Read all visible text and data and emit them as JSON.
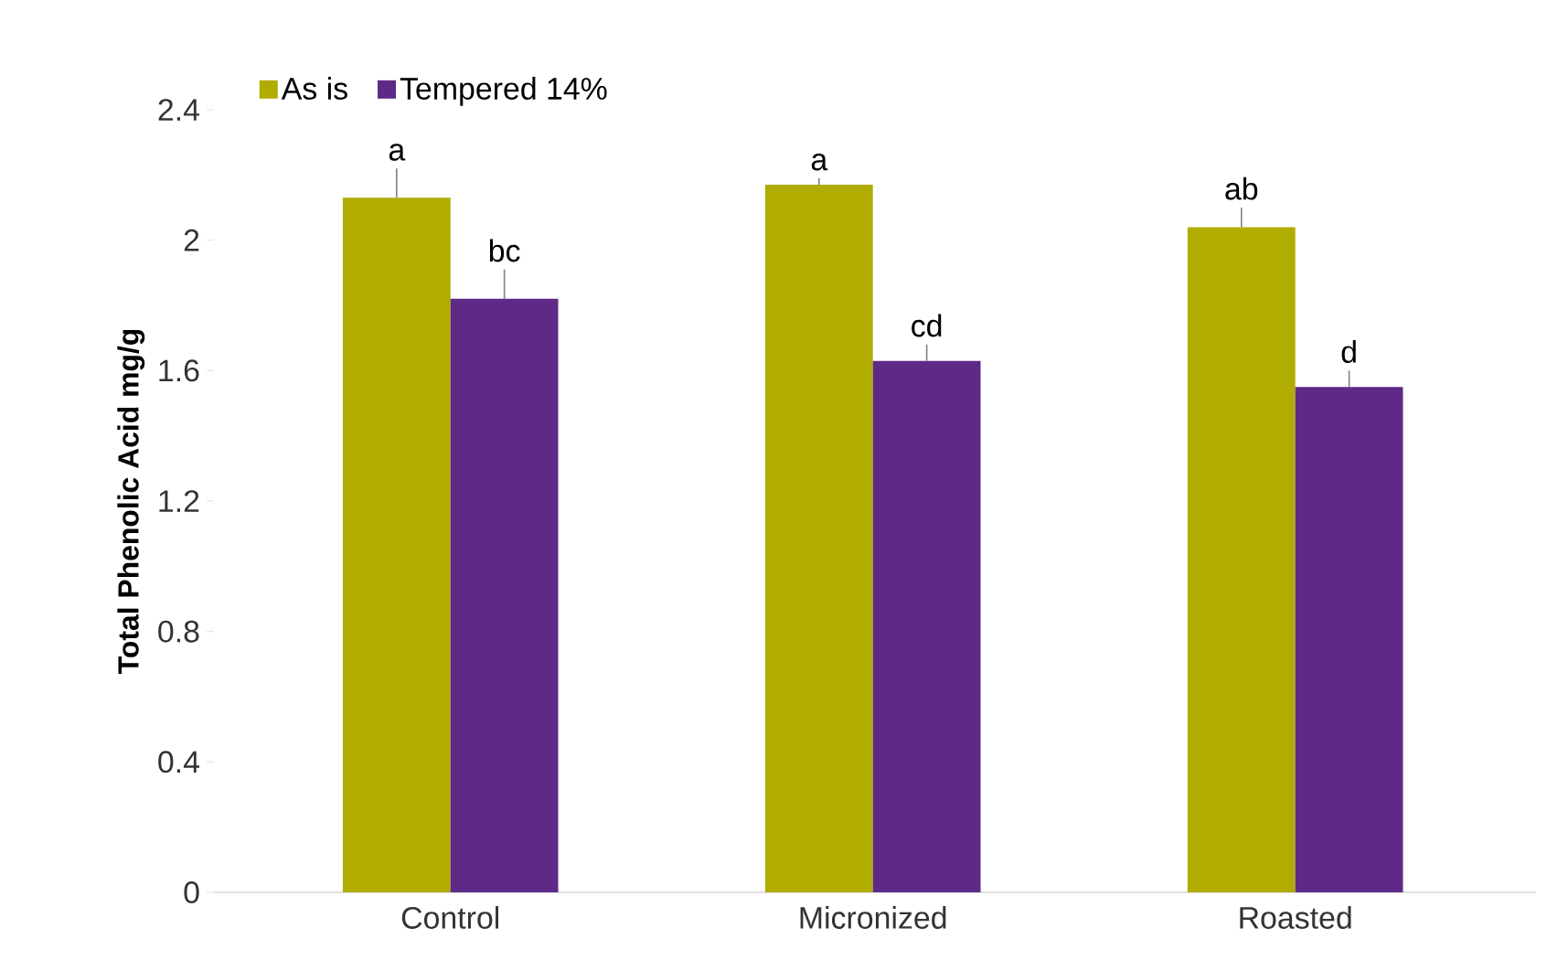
{
  "chart_data": {
    "type": "bar",
    "ylabel": "Total Phenolic Acid mg/g",
    "categories": [
      "Control",
      "Micronized",
      "Roasted"
    ],
    "series": [
      {
        "name": "As is",
        "color": "#b0ac00",
        "values": [
          2.13,
          2.17,
          2.04
        ],
        "errors": [
          [
            2.13,
            2.22
          ],
          [
            2.17,
            2.19
          ],
          [
            2.04,
            2.1
          ]
        ],
        "value_labels": [
          "a",
          "a",
          "ab"
        ]
      },
      {
        "name": "Tempered 14%",
        "color": "#5f2a87",
        "values": [
          1.82,
          1.63,
          1.55
        ],
        "errors": [
          [
            1.82,
            1.91
          ],
          [
            1.63,
            1.68
          ],
          [
            1.55,
            1.6
          ]
        ],
        "value_labels": [
          "bc",
          "cd",
          "d"
        ]
      }
    ],
    "ylim": [
      0,
      2.4
    ],
    "yticks": [
      0,
      0.4,
      0.8,
      1.2,
      1.6,
      2,
      2.4
    ],
    "legend": "top left",
    "grid": false
  }
}
